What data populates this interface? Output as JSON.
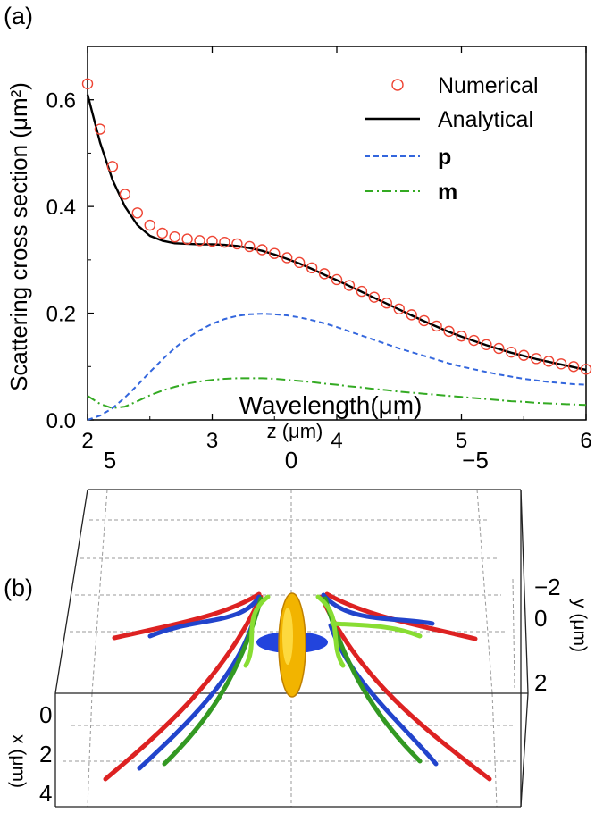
{
  "panel_a_label": "(a)",
  "panel_b_label": "(b)",
  "chart_data": [
    {
      "type": "line",
      "xlabel": "Wavelength(μm)",
      "ylabel": "Scattering cross section (μm²)",
      "xlim": [
        2,
        6
      ],
      "ylim": [
        0,
        0.7
      ],
      "xticks": [
        "2",
        "3",
        "4",
        "5",
        "6"
      ],
      "yticks": [
        "0.0",
        "0.2",
        "0.4",
        "0.6"
      ],
      "legend_position": "top-right",
      "colors": {
        "numerical": "#ee4433",
        "analytical": "#000000",
        "p": "#3366dd",
        "m": "#33aa22"
      },
      "series": [
        {
          "name": "Numerical",
          "style": "markers",
          "x": [
            2.0,
            2.1,
            2.2,
            2.3,
            2.4,
            2.5,
            2.6,
            2.7,
            2.8,
            2.9,
            3.0,
            3.1,
            3.2,
            3.3,
            3.4,
            3.5,
            3.6,
            3.7,
            3.8,
            3.9,
            4.0,
            4.1,
            4.2,
            4.3,
            4.4,
            4.5,
            4.6,
            4.7,
            4.8,
            4.9,
            5.0,
            5.1,
            5.2,
            5.3,
            5.4,
            5.5,
            5.6,
            5.7,
            5.8,
            5.9,
            6.0
          ],
          "y": [
            0.63,
            0.545,
            0.475,
            0.423,
            0.388,
            0.365,
            0.35,
            0.343,
            0.339,
            0.336,
            0.335,
            0.333,
            0.33,
            0.325,
            0.319,
            0.312,
            0.304,
            0.295,
            0.285,
            0.274,
            0.263,
            0.252,
            0.241,
            0.23,
            0.219,
            0.208,
            0.197,
            0.186,
            0.176,
            0.166,
            0.157,
            0.149,
            0.141,
            0.134,
            0.127,
            0.121,
            0.115,
            0.11,
            0.105,
            0.1,
            0.095
          ]
        },
        {
          "name": "Analytical",
          "style": "solid",
          "x": [
            2.0,
            2.1,
            2.2,
            2.3,
            2.4,
            2.5,
            2.6,
            2.7,
            2.8,
            2.9,
            3.0,
            3.1,
            3.2,
            3.3,
            3.4,
            3.5,
            3.6,
            3.7,
            3.8,
            3.9,
            4.0,
            4.1,
            4.2,
            4.3,
            4.4,
            4.5,
            4.6,
            4.7,
            4.8,
            4.9,
            5.0,
            5.1,
            5.2,
            5.3,
            5.4,
            5.5,
            5.6,
            5.7,
            5.8,
            5.9,
            6.0
          ],
          "y": [
            0.61,
            0.52,
            0.45,
            0.4,
            0.365,
            0.345,
            0.336,
            0.331,
            0.33,
            0.329,
            0.329,
            0.328,
            0.326,
            0.322,
            0.317,
            0.31,
            0.302,
            0.293,
            0.283,
            0.272,
            0.262,
            0.251,
            0.24,
            0.229,
            0.218,
            0.207,
            0.196,
            0.185,
            0.175,
            0.165,
            0.156,
            0.148,
            0.14,
            0.133,
            0.126,
            0.12,
            0.114,
            0.109,
            0.104,
            0.099,
            0.094
          ]
        },
        {
          "name": "p",
          "style": "dashed",
          "x": [
            2.0,
            2.1,
            2.2,
            2.3,
            2.4,
            2.5,
            2.6,
            2.7,
            2.8,
            2.9,
            3.0,
            3.1,
            3.2,
            3.3,
            3.4,
            3.5,
            3.6,
            3.7,
            3.8,
            3.9,
            4.0,
            4.1,
            4.2,
            4.3,
            4.4,
            4.5,
            4.6,
            4.7,
            4.8,
            4.9,
            5.0,
            5.1,
            5.2,
            5.3,
            5.4,
            5.5,
            5.6,
            5.7,
            5.8,
            5.9,
            6.0
          ],
          "y": [
            0.0,
            0.008,
            0.022,
            0.042,
            0.065,
            0.09,
            0.113,
            0.135,
            0.153,
            0.168,
            0.18,
            0.189,
            0.195,
            0.198,
            0.199,
            0.198,
            0.196,
            0.192,
            0.187,
            0.181,
            0.174,
            0.166,
            0.158,
            0.15,
            0.142,
            0.134,
            0.127,
            0.12,
            0.113,
            0.106,
            0.1,
            0.095,
            0.09,
            0.085,
            0.081,
            0.077,
            0.074,
            0.071,
            0.069,
            0.067,
            0.066
          ]
        },
        {
          "name": "m",
          "style": "dashdot",
          "x": [
            2.0,
            2.1,
            2.2,
            2.3,
            2.4,
            2.5,
            2.6,
            2.7,
            2.8,
            2.9,
            3.0,
            3.1,
            3.2,
            3.3,
            3.4,
            3.5,
            3.6,
            3.7,
            3.8,
            3.9,
            4.0,
            4.1,
            4.2,
            4.3,
            4.4,
            4.5,
            4.6,
            4.7,
            4.8,
            4.9,
            5.0,
            5.1,
            5.2,
            5.3,
            5.4,
            5.5,
            5.6,
            5.7,
            5.8,
            5.9,
            6.0
          ],
          "y": [
            0.045,
            0.03,
            0.022,
            0.025,
            0.035,
            0.046,
            0.055,
            0.062,
            0.068,
            0.072,
            0.075,
            0.077,
            0.078,
            0.078,
            0.078,
            0.077,
            0.075,
            0.073,
            0.071,
            0.068,
            0.066,
            0.063,
            0.061,
            0.058,
            0.056,
            0.053,
            0.051,
            0.049,
            0.047,
            0.045,
            0.043,
            0.041,
            0.039,
            0.037,
            0.035,
            0.034,
            0.032,
            0.031,
            0.03,
            0.029,
            0.028
          ]
        }
      ]
    },
    {
      "type": "3d-trajectory",
      "z_label": "z (μm)",
      "x_label": "x (μm)",
      "y_label": "y (μm)",
      "z_ticks": [
        "5",
        "0",
        "−5"
      ],
      "x_ticks": [
        "0",
        "2",
        "4"
      ],
      "y_ticks": [
        "−2",
        "0",
        "2"
      ],
      "trajectory_colors": {
        "red": "#dd2222",
        "blue": "#2244cc",
        "green": "#66bb33",
        "particle": "#f2b400"
      }
    }
  ]
}
